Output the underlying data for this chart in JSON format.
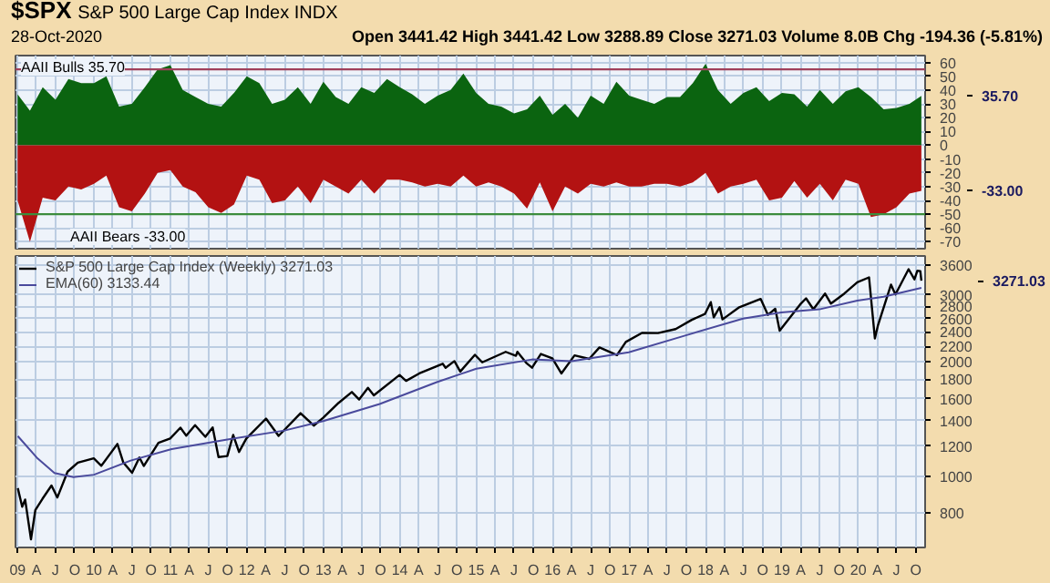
{
  "chart_data": [
    {
      "type": "area",
      "title": "$SPX",
      "subtitle": "S&P 500 Large Cap Index INDX",
      "annotations": [
        "28-Oct-2020",
        "Open 3441.42 High 3441.42 Low 3288.89 Close 3271.03 Volume 8.0B Chg -194.36 (-5.81%)",
        "35.70",
        "-33.00"
      ],
      "x": [
        "2009-01",
        "2009-03",
        "2009-05",
        "2009-07",
        "2009-09",
        "2009-11",
        "2010-01",
        "2010-03",
        "2010-05",
        "2010-07",
        "2010-09",
        "2010-11",
        "2011-01",
        "2011-03",
        "2011-05",
        "2011-07",
        "2011-09",
        "2011-11",
        "2012-01",
        "2012-03",
        "2012-05",
        "2012-07",
        "2012-09",
        "2012-11",
        "2013-01",
        "2013-03",
        "2013-05",
        "2013-07",
        "2013-09",
        "2013-11",
        "2014-01",
        "2014-03",
        "2014-05",
        "2014-07",
        "2014-09",
        "2014-11",
        "2015-01",
        "2015-03",
        "2015-05",
        "2015-07",
        "2015-09",
        "2015-11",
        "2016-01",
        "2016-03",
        "2016-05",
        "2016-07",
        "2016-09",
        "2016-11",
        "2017-01",
        "2017-03",
        "2017-05",
        "2017-07",
        "2017-09",
        "2017-11",
        "2018-01",
        "2018-03",
        "2018-05",
        "2018-07",
        "2018-09",
        "2018-11",
        "2019-01",
        "2019-03",
        "2019-05",
        "2019-07",
        "2019-09",
        "2019-11",
        "2020-01",
        "2020-03",
        "2020-05",
        "2020-07",
        "2020-09",
        "2020-10-28"
      ],
      "series": [
        {
          "name": "AAII Bulls 35.70",
          "color": "#0b6410",
          "values": [
            37,
            25,
            42,
            33,
            48,
            45,
            45,
            50,
            28,
            30,
            42,
            55,
            58,
            40,
            35,
            30,
            28,
            38,
            50,
            45,
            30,
            33,
            42,
            30,
            46,
            35,
            30,
            42,
            38,
            48,
            42,
            37,
            30,
            36,
            40,
            52,
            38,
            30,
            28,
            23,
            26,
            36,
            22,
            30,
            20,
            36,
            30,
            46,
            36,
            33,
            30,
            35,
            35,
            45,
            59,
            40,
            30,
            38,
            42,
            32,
            38,
            37,
            28,
            40,
            30,
            39,
            42,
            35,
            26,
            27,
            30,
            35.7
          ]
        },
        {
          "name": "AAII Bears -33.00",
          "color": "#b31212",
          "values": [
            -40,
            -70,
            -38,
            -40,
            -30,
            -32,
            -28,
            -22,
            -45,
            -48,
            -35,
            -20,
            -18,
            -30,
            -34,
            -45,
            -49,
            -43,
            -22,
            -25,
            -42,
            -40,
            -30,
            -42,
            -25,
            -30,
            -35,
            -25,
            -35,
            -25,
            -25,
            -27,
            -30,
            -28,
            -30,
            -22,
            -30,
            -27,
            -30,
            -35,
            -46,
            -27,
            -48,
            -30,
            -35,
            -28,
            -30,
            -27,
            -30,
            -30,
            -28,
            -28,
            -30,
            -27,
            -20,
            -35,
            -30,
            -28,
            -25,
            -40,
            -38,
            -26,
            -38,
            -28,
            -40,
            -25,
            -28,
            -52,
            -50,
            -45,
            -35,
            -33.0
          ]
        }
      ],
      "ylim": [
        -75,
        65
      ],
      "yticks": [
        -70,
        -60,
        -50,
        -40,
        -30,
        -20,
        -10,
        0,
        10,
        20,
        30,
        40,
        50,
        60
      ],
      "xlim": [
        "2008-12-22",
        "2020-11-15"
      ],
      "xticks": [
        {
          "value": "2009-01",
          "label": null
        },
        {
          "value": "2009-04",
          "label": null
        },
        {
          "value": "2009-07",
          "label": null
        },
        {
          "value": "2009-10",
          "label": null
        },
        {
          "value": "2010-01",
          "label": null
        },
        {
          "value": "2010-04",
          "label": null
        },
        {
          "value": "2010-07",
          "label": null
        },
        {
          "value": "2010-10",
          "label": null
        },
        {
          "value": "2011-01",
          "label": null
        },
        {
          "value": "2011-04",
          "label": null
        },
        {
          "value": "2011-07",
          "label": null
        },
        {
          "value": "2011-10",
          "label": null
        },
        {
          "value": "2012-01",
          "label": null
        },
        {
          "value": "2012-04",
          "label": null
        },
        {
          "value": "2012-07",
          "label": null
        },
        {
          "value": "2012-10",
          "label": null
        },
        {
          "value": "2013-01",
          "label": null
        },
        {
          "value": "2013-04",
          "label": null
        },
        {
          "value": "2013-07",
          "label": null
        },
        {
          "value": "2013-10",
          "label": null
        },
        {
          "value": "2014-01",
          "label": null
        },
        {
          "value": "2014-04",
          "label": null
        },
        {
          "value": "2014-07",
          "label": null
        },
        {
          "value": "2014-10",
          "label": null
        },
        {
          "value": "2015-01",
          "label": null
        },
        {
          "value": "2015-04",
          "label": null
        },
        {
          "value": "2015-07",
          "label": null
        },
        {
          "value": "2015-10",
          "label": null
        },
        {
          "value": "2016-01",
          "label": null
        },
        {
          "value": "2016-04",
          "label": null
        },
        {
          "value": "2016-07",
          "label": null
        },
        {
          "value": "2016-10",
          "label": null
        },
        {
          "value": "2017-01",
          "label": null
        },
        {
          "value": "2017-04",
          "label": null
        },
        {
          "value": "2017-07",
          "label": null
        },
        {
          "value": "2017-10",
          "label": null
        },
        {
          "value": "2018-01",
          "label": null
        },
        {
          "value": "2018-04",
          "label": null
        },
        {
          "value": "2018-07",
          "label": null
        },
        {
          "value": "2018-10",
          "label": null
        },
        {
          "value": "2019-01",
          "label": null
        },
        {
          "value": "2019-04",
          "label": null
        },
        {
          "value": "2019-07",
          "label": null
        },
        {
          "value": "2019-10",
          "label": null
        },
        {
          "value": "2020-01",
          "label": null
        },
        {
          "value": "2020-04",
          "label": null
        },
        {
          "value": "2020-07",
          "label": null
        },
        {
          "value": "2020-10",
          "label": null
        }
      ],
      "ref_lines": [
        {
          "axis": "y",
          "value": 55,
          "color": "#a0405a"
        },
        {
          "axis": "y",
          "value": -50,
          "color": "#3c8c3c"
        }
      ],
      "grid": true,
      "tick_labels": "y"
    },
    {
      "type": "line",
      "annotations": [
        "3271.03"
      ],
      "series": [
        {
          "name": "S&P 500 Large Cap Index (Weekly) 3271.03",
          "color": "#000000",
          "x": [
            "2009-01-02",
            "2009-01-23",
            "2009-02-06",
            "2009-03-06",
            "2009-03-27",
            "2009-04-30",
            "2009-06-12",
            "2009-07-10",
            "2009-08-28",
            "2009-10-16",
            "2009-12-31",
            "2010-02-05",
            "2010-04-23",
            "2010-05-21",
            "2010-07-02",
            "2010-08-06",
            "2010-08-27",
            "2010-11-05",
            "2010-12-31",
            "2011-02-18",
            "2011-03-18",
            "2011-04-29",
            "2011-06-17",
            "2011-07-22",
            "2011-08-19",
            "2011-09-30",
            "2011-10-28",
            "2011-11-25",
            "2011-12-30",
            "2012-04-02",
            "2012-06-01",
            "2012-09-14",
            "2012-11-16",
            "2012-12-31",
            "2013-03-15",
            "2013-05-17",
            "2013-06-21",
            "2013-08-02",
            "2013-08-30",
            "2013-12-31",
            "2014-01-31",
            "2014-04-04",
            "2014-07-25",
            "2014-08-08",
            "2014-09-19",
            "2014-10-17",
            "2014-12-26",
            "2015-01-30",
            "2015-05-22",
            "2015-07-10",
            "2015-07-17",
            "2015-08-28",
            "2015-09-25",
            "2015-11-06",
            "2015-12-31",
            "2016-02-12",
            "2016-04-15",
            "2016-06-24",
            "2016-08-12",
            "2016-11-04",
            "2016-12-16",
            "2017-03-03",
            "2017-05-19",
            "2017-08-11",
            "2017-10-27",
            "2017-12-29",
            "2018-01-26",
            "2018-02-09",
            "2018-03-09",
            "2018-03-23",
            "2018-06-08",
            "2018-09-21",
            "2018-10-26",
            "2018-11-30",
            "2018-12-21",
            "2019-03-29",
            "2019-04-26",
            "2019-05-31",
            "2019-07-26",
            "2019-08-23",
            "2019-10-25",
            "2019-12-27",
            "2020-02-21",
            "2020-03-20",
            "2020-04-03",
            "2020-06-05",
            "2020-06-26",
            "2020-08-28",
            "2020-09-25",
            "2020-10-09",
            "2020-10-23",
            "2020-10-28"
          ],
          "values": [
            931,
            832,
            869,
            683,
            816,
            873,
            946,
            880,
            1029,
            1087,
            1115,
            1066,
            1217,
            1088,
            1022,
            1121,
            1065,
            1225,
            1258,
            1343,
            1279,
            1364,
            1271,
            1345,
            1124,
            1131,
            1285,
            1159,
            1258,
            1419,
            1278,
            1466,
            1360,
            1426,
            1561,
            1667,
            1593,
            1709,
            1633,
            1848,
            1783,
            1865,
            1978,
            1931,
            2010,
            1887,
            2088,
            1995,
            2126,
            2076,
            2126,
            1989,
            1931,
            2099,
            2044,
            1865,
            2081,
            2037,
            2184,
            2085,
            2258,
            2383,
            2382,
            2441,
            2581,
            2674,
            2873,
            2620,
            2786,
            2588,
            2779,
            2930,
            2659,
            2760,
            2417,
            2834,
            2940,
            2752,
            3026,
            2847,
            3023,
            3240,
            3338,
            2305,
            2489,
            3194,
            3009,
            3508,
            3298,
            3477,
            3465,
            3271.03
          ]
        },
        {
          "name": "EMA(60) 3133.44",
          "color": "#4a4a9c",
          "x": [
            "2009-01-02",
            "2009-04-03",
            "2009-06-26",
            "2009-09-25",
            "2010-01-01",
            "2010-06-25",
            "2011-01-07",
            "2011-09-30",
            "2012-06-29",
            "2013-01-04",
            "2013-09-27",
            "2014-06-27",
            "2015-01-02",
            "2015-09-25",
            "2016-04-01",
            "2016-12-30",
            "2017-09-29",
            "2018-06-29",
            "2018-12-28",
            "2019-06-28",
            "2019-12-27",
            "2020-05-01",
            "2020-10-28"
          ],
          "values": [
            1276,
            1120,
            1020,
            995,
            1010,
            1100,
            1180,
            1250,
            1320,
            1400,
            1550,
            1770,
            1920,
            2030,
            2010,
            2120,
            2350,
            2600,
            2700,
            2750,
            2900,
            2970,
            3133.44
          ]
        }
      ],
      "log": "y",
      "ylim": [
        650,
        3800
      ],
      "yticks": [
        800,
        1000,
        1200,
        1400,
        1600,
        1800,
        2000,
        2200,
        2400,
        2600,
        2800,
        3000,
        3600
      ],
      "xlim": [
        "2008-12-22",
        "2020-11-15"
      ],
      "xticks": [
        {
          "value": "2009-01",
          "label": "09"
        },
        {
          "value": "2009-04",
          "label": "A"
        },
        {
          "value": "2009-07",
          "label": "J"
        },
        {
          "value": "2009-10",
          "label": "O"
        },
        {
          "value": "2010-01",
          "label": "10"
        },
        {
          "value": "2010-04",
          "label": "A"
        },
        {
          "value": "2010-07",
          "label": "J"
        },
        {
          "value": "2010-10",
          "label": "O"
        },
        {
          "value": "2011-01",
          "label": "11"
        },
        {
          "value": "2011-04",
          "label": "A"
        },
        {
          "value": "2011-07",
          "label": "J"
        },
        {
          "value": "2011-10",
          "label": "O"
        },
        {
          "value": "2012-01",
          "label": "12"
        },
        {
          "value": "2012-04",
          "label": "A"
        },
        {
          "value": "2012-07",
          "label": "J"
        },
        {
          "value": "2012-10",
          "label": "O"
        },
        {
          "value": "2013-01",
          "label": "13"
        },
        {
          "value": "2013-04",
          "label": "A"
        },
        {
          "value": "2013-07",
          "label": "J"
        },
        {
          "value": "2013-10",
          "label": "O"
        },
        {
          "value": "2014-01",
          "label": "14"
        },
        {
          "value": "2014-04",
          "label": "A"
        },
        {
          "value": "2014-07",
          "label": "J"
        },
        {
          "value": "2014-10",
          "label": "O"
        },
        {
          "value": "2015-01",
          "label": "15"
        },
        {
          "value": "2015-04",
          "label": "A"
        },
        {
          "value": "2015-07",
          "label": "J"
        },
        {
          "value": "2015-10",
          "label": "O"
        },
        {
          "value": "2016-01",
          "label": "16"
        },
        {
          "value": "2016-04",
          "label": "A"
        },
        {
          "value": "2016-07",
          "label": "J"
        },
        {
          "value": "2016-10",
          "label": "O"
        },
        {
          "value": "2017-01",
          "label": "17"
        },
        {
          "value": "2017-04",
          "label": "A"
        },
        {
          "value": "2017-07",
          "label": "J"
        },
        {
          "value": "2017-10",
          "label": "O"
        },
        {
          "value": "2018-01",
          "label": "18"
        },
        {
          "value": "2018-04",
          "label": "A"
        },
        {
          "value": "2018-07",
          "label": "J"
        },
        {
          "value": "2018-10",
          "label": "O"
        },
        {
          "value": "2019-01",
          "label": "19"
        },
        {
          "value": "2019-04",
          "label": "A"
        },
        {
          "value": "2019-07",
          "label": "J"
        },
        {
          "value": "2019-10",
          "label": "O"
        },
        {
          "value": "2020-01",
          "label": "20"
        },
        {
          "value": "2020-04",
          "label": "A"
        },
        {
          "value": "2020-07",
          "label": "J"
        },
        {
          "value": "2020-10",
          "label": "O"
        }
      ],
      "legend": "top left",
      "grid": true
    }
  ]
}
